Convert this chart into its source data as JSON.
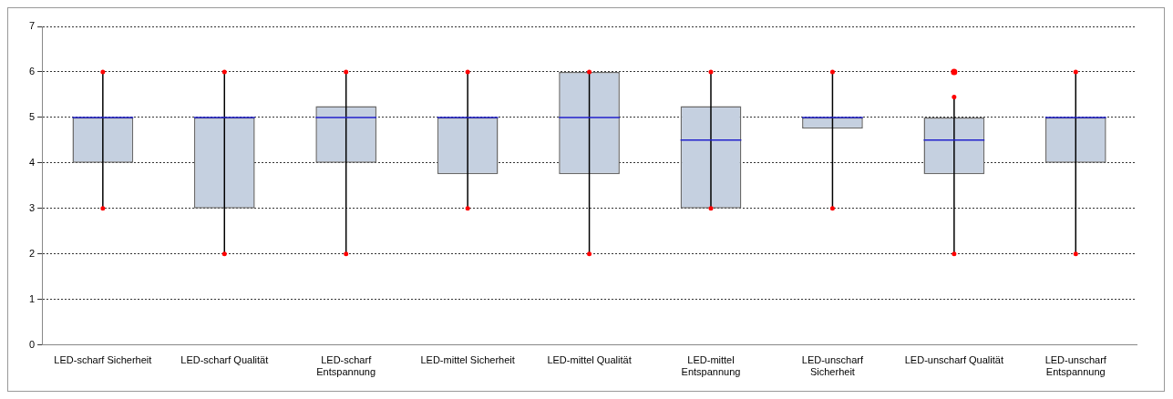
{
  "chart_data": {
    "type": "box",
    "categories": [
      "LED-scharf Sicherheit",
      "LED-scharf Qualität",
      "LED-scharf Entspannung",
      "LED-mittel Sicherheit",
      "LED-mittel Qualität",
      "LED-mittel Entspannung",
      "LED-unscharf Sicherheit",
      "LED-unscharf Qualität",
      "LED-unscharf Entspannung"
    ],
    "color": "#c5d0e0",
    "boxes": [
      {
        "low": 3,
        "q1": 4,
        "median": 5,
        "q3": 5,
        "high": 6
      },
      {
        "low": 2,
        "q1": 3,
        "median": 5,
        "q3": 5,
        "high": 6
      },
      {
        "low": 2,
        "q1": 4,
        "median": 5,
        "q3": 5.25,
        "high": 6
      },
      {
        "low": 3,
        "q1": 3.75,
        "median": 5,
        "q3": 5,
        "high": 6
      },
      {
        "low": 2,
        "q1": 3.75,
        "median": 5,
        "q3": 6,
        "high": 6
      },
      {
        "low": 3,
        "q1": 3,
        "median": 4.5,
        "q3": 5.25,
        "high": 6
      },
      {
        "low": 3,
        "q1": 4.75,
        "median": 5,
        "q3": 5,
        "high": 6
      },
      {
        "low": 2,
        "q1": 3.75,
        "median": 4.5,
        "q3": 5,
        "high": 5.45,
        "outliers": [
          6
        ]
      },
      {
        "low": 2,
        "q1": 4,
        "median": 5,
        "q3": 5,
        "high": 6
      }
    ],
    "ylim": [
      0,
      7
    ],
    "yticks": [
      0,
      1,
      2,
      3,
      4,
      5,
      6,
      7
    ],
    "grid": "y",
    "legend": false
  }
}
